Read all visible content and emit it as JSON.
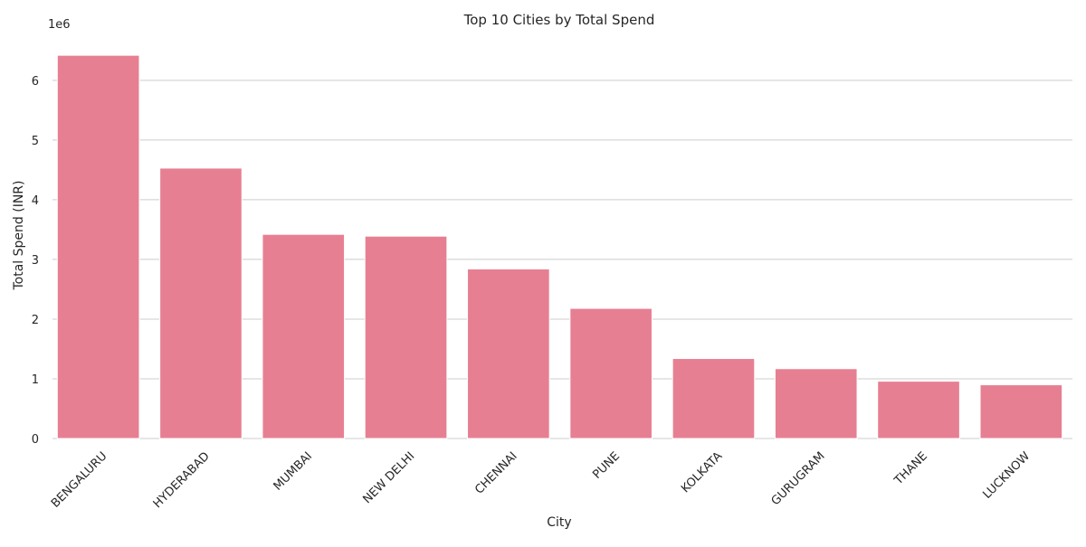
{
  "chart_data": {
    "type": "bar",
    "title": "Top 10 Cities by Total Spend",
    "xlabel": "City",
    "ylabel": "Total Spend (INR)",
    "y_offset_label": "1e6",
    "categories": [
      "BENGALURU",
      "HYDERABAD",
      "MUMBAI",
      "NEW DELHI",
      "CHENNAI",
      "PUNE",
      "KOLKATA",
      "GURUGRAM",
      "THANE",
      "LUCKNOW"
    ],
    "values": [
      6420000,
      4530000,
      3420000,
      3390000,
      2840000,
      2180000,
      1340000,
      1170000,
      960000,
      900000
    ],
    "yticks": [
      0,
      1000000,
      2000000,
      3000000,
      4000000,
      5000000,
      6000000
    ],
    "ytick_labels": [
      "0",
      "1",
      "2",
      "3",
      "4",
      "5",
      "6"
    ],
    "ylim": [
      0,
      6740000
    ],
    "grid": "horizontal",
    "bar_color": "#e77f92",
    "grid_color": "#cccccc"
  }
}
